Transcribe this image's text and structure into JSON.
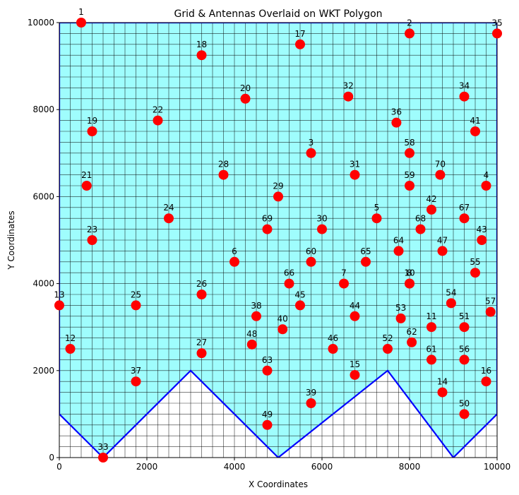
{
  "chart_data": {
    "type": "scatter",
    "title": "Grid & Antennas Overlaid on WKT Polygon",
    "xlabel": "X Coordinates",
    "ylabel": "Y Coordinates",
    "xlim": [
      0,
      10000
    ],
    "ylim": [
      0,
      10000
    ],
    "xticks": [
      0,
      2000,
      4000,
      6000,
      8000,
      10000
    ],
    "yticks": [
      0,
      2000,
      4000,
      6000,
      8000,
      10000
    ],
    "grid": true,
    "grid_step": 250,
    "colors": {
      "polygon_fill": "#9ffdfd",
      "polygon_edge": "#0000ff",
      "grid_line": "#000000",
      "marker": "#ff0000"
    },
    "polygon": [
      [
        0,
        10000
      ],
      [
        10000,
        10000
      ],
      [
        10000,
        1000
      ],
      [
        9000,
        0
      ],
      [
        7500,
        2000
      ],
      [
        5000,
        0
      ],
      [
        3000,
        2000
      ],
      [
        1000,
        0
      ],
      [
        0,
        1000
      ]
    ],
    "antennas": [
      {
        "label": "1",
        "x": 500,
        "y": 10000
      },
      {
        "label": "2",
        "x": 8000,
        "y": 9750
      },
      {
        "label": "3",
        "x": 5750,
        "y": 7000
      },
      {
        "label": "4",
        "x": 9750,
        "y": 6250
      },
      {
        "label": "5",
        "x": 7250,
        "y": 5500
      },
      {
        "label": "6",
        "x": 4000,
        "y": 4500
      },
      {
        "label": "7",
        "x": 6500,
        "y": 4000
      },
      {
        "label": "8",
        "x": 8000,
        "y": 4000
      },
      {
        "label": "10",
        "x": 8000,
        "y": 4000
      },
      {
        "label": "11",
        "x": 8500,
        "y": 3000
      },
      {
        "label": "12",
        "x": 250,
        "y": 2500
      },
      {
        "label": "13",
        "x": 0,
        "y": 3500
      },
      {
        "label": "14",
        "x": 8750,
        "y": 1500
      },
      {
        "label": "15",
        "x": 6750,
        "y": 1900
      },
      {
        "label": "16",
        "x": 9750,
        "y": 1750
      },
      {
        "label": "17",
        "x": 5500,
        "y": 9500
      },
      {
        "label": "18",
        "x": 3250,
        "y": 9250
      },
      {
        "label": "19",
        "x": 750,
        "y": 7500
      },
      {
        "label": "20",
        "x": 4250,
        "y": 8250
      },
      {
        "label": "21",
        "x": 625,
        "y": 6250
      },
      {
        "label": "22",
        "x": 2250,
        "y": 7750
      },
      {
        "label": "23",
        "x": 750,
        "y": 5000
      },
      {
        "label": "24",
        "x": 2500,
        "y": 5500
      },
      {
        "label": "25",
        "x": 1750,
        "y": 3500
      },
      {
        "label": "26",
        "x": 3250,
        "y": 3750
      },
      {
        "label": "27",
        "x": 3250,
        "y": 2400
      },
      {
        "label": "28",
        "x": 3750,
        "y": 6500
      },
      {
        "label": "29",
        "x": 5000,
        "y": 6000
      },
      {
        "label": "30",
        "x": 6000,
        "y": 5250
      },
      {
        "label": "31",
        "x": 6750,
        "y": 6500
      },
      {
        "label": "32",
        "x": 6600,
        "y": 8300
      },
      {
        "label": "33",
        "x": 1000,
        "y": 0
      },
      {
        "label": "34",
        "x": 9250,
        "y": 8300
      },
      {
        "label": "35",
        "x": 10000,
        "y": 9750
      },
      {
        "label": "36",
        "x": 7700,
        "y": 7700
      },
      {
        "label": "37",
        "x": 1750,
        "y": 1750
      },
      {
        "label": "38",
        "x": 4500,
        "y": 3250
      },
      {
        "label": "39",
        "x": 5750,
        "y": 1250
      },
      {
        "label": "40",
        "x": 5100,
        "y": 2950
      },
      {
        "label": "41",
        "x": 9500,
        "y": 7500
      },
      {
        "label": "42",
        "x": 8500,
        "y": 5700
      },
      {
        "label": "43",
        "x": 9650,
        "y": 5000
      },
      {
        "label": "44",
        "x": 6750,
        "y": 3250
      },
      {
        "label": "45",
        "x": 5500,
        "y": 3500
      },
      {
        "label": "46",
        "x": 6250,
        "y": 2500
      },
      {
        "label": "47",
        "x": 8750,
        "y": 4750
      },
      {
        "label": "48",
        "x": 4400,
        "y": 2600
      },
      {
        "label": "49",
        "x": 4750,
        "y": 750
      },
      {
        "label": "50",
        "x": 9250,
        "y": 1000
      },
      {
        "label": "51",
        "x": 9250,
        "y": 3000
      },
      {
        "label": "52",
        "x": 7500,
        "y": 2500
      },
      {
        "label": "53",
        "x": 7800,
        "y": 3200
      },
      {
        "label": "54",
        "x": 8950,
        "y": 3550
      },
      {
        "label": "55",
        "x": 9500,
        "y": 4250
      },
      {
        "label": "56",
        "x": 9250,
        "y": 2250
      },
      {
        "label": "57",
        "x": 9850,
        "y": 3350
      },
      {
        "label": "58",
        "x": 8000,
        "y": 7000
      },
      {
        "label": "59",
        "x": 8000,
        "y": 6250
      },
      {
        "label": "60",
        "x": 5750,
        "y": 4500
      },
      {
        "label": "61",
        "x": 8500,
        "y": 2250
      },
      {
        "label": "62",
        "x": 8050,
        "y": 2650
      },
      {
        "label": "63",
        "x": 4750,
        "y": 2000
      },
      {
        "label": "64",
        "x": 7750,
        "y": 4750
      },
      {
        "label": "65",
        "x": 7000,
        "y": 4500
      },
      {
        "label": "66",
        "x": 5250,
        "y": 4000
      },
      {
        "label": "67",
        "x": 9250,
        "y": 5500
      },
      {
        "label": "68",
        "x": 8250,
        "y": 5250
      },
      {
        "label": "69",
        "x": 4750,
        "y": 5250
      },
      {
        "label": "70",
        "x": 8700,
        "y": 6500
      }
    ]
  }
}
